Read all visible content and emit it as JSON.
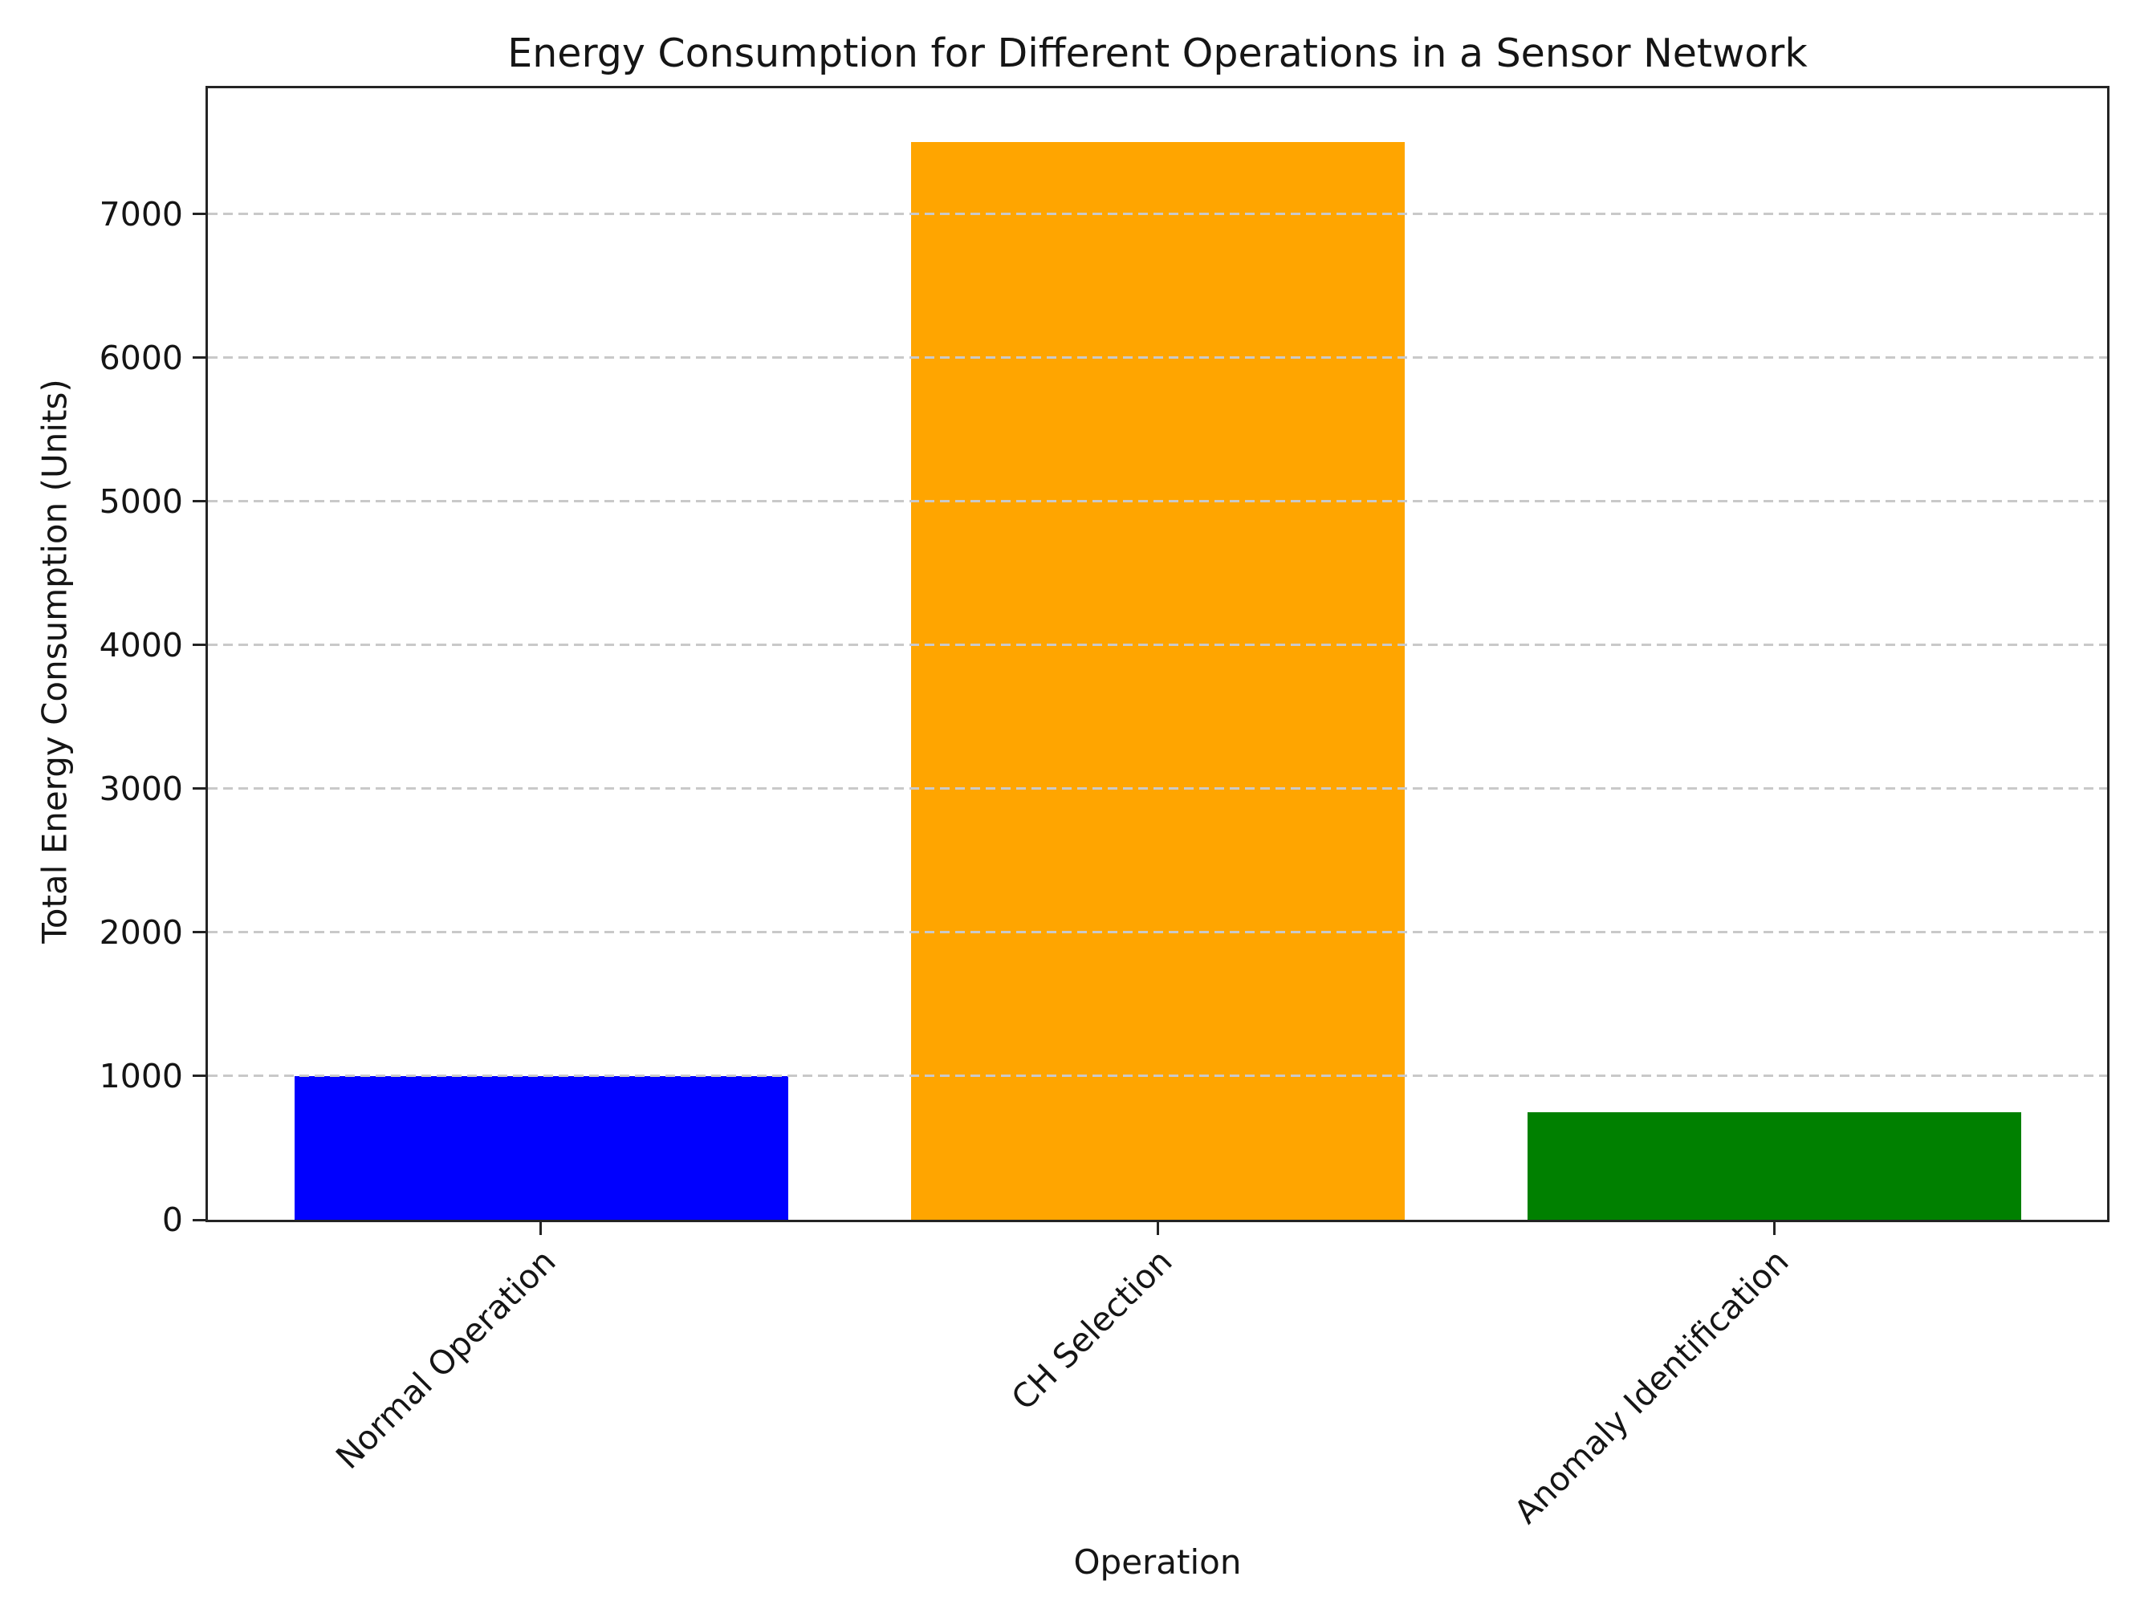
{
  "chart_data": {
    "type": "bar",
    "title": "Energy Consumption for Different Operations in a Sensor Network",
    "categories": [
      "Normal Operation",
      "CH Selection",
      "Anomaly Identification"
    ],
    "values": [
      1000,
      7500,
      750
    ],
    "bar_colors": [
      "#0000ff",
      "#ffa500",
      "#008000"
    ],
    "xlabel": "Operation",
    "ylabel": "Total Energy Consumption (Units)",
    "ylim": [
      0,
      7875
    ],
    "yticks": [
      0,
      1000,
      2000,
      3000,
      4000,
      5000,
      6000,
      7000
    ],
    "xtick_rotation_deg": 45,
    "grid": "horizontal-dashed",
    "grid_color": "#c9c9c9",
    "axis_color": "#242424",
    "text_color": "#151515",
    "background_color": "#ffffff",
    "legend": "none"
  }
}
